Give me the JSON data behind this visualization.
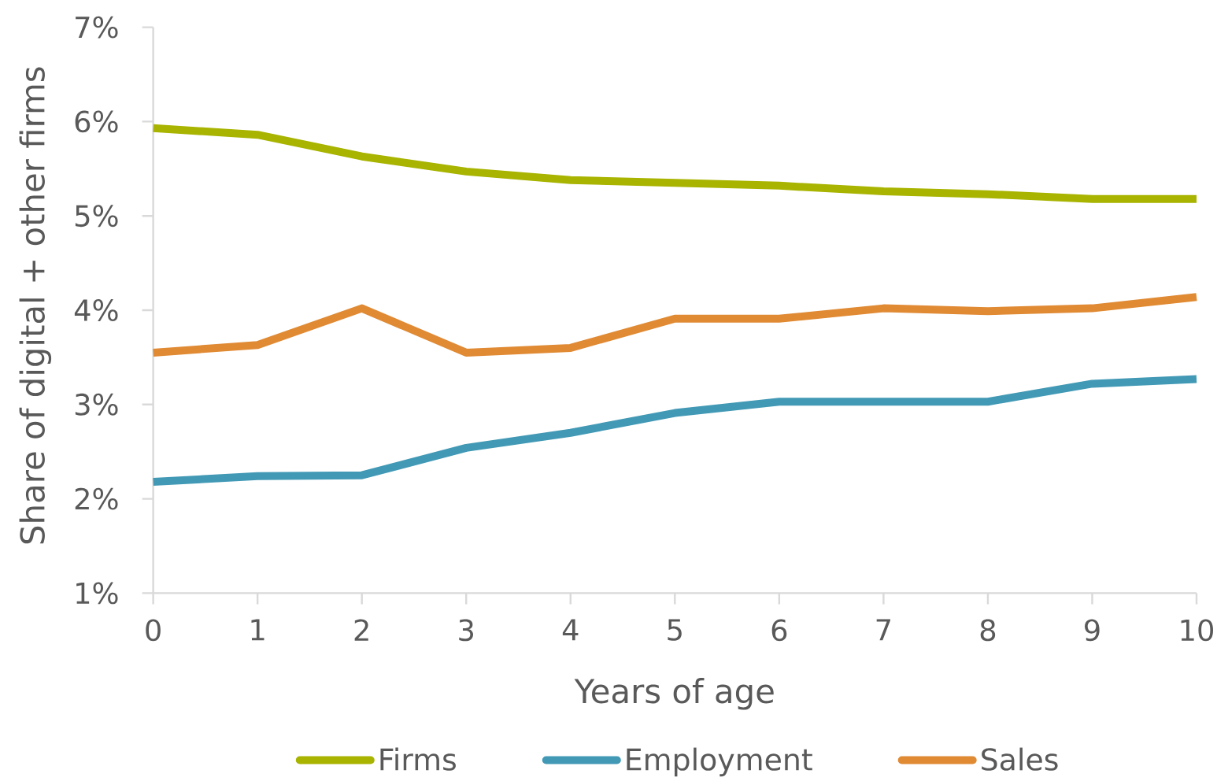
{
  "chart_data": {
    "type": "line",
    "xlabel": "Years of age",
    "ylabel": "Share of digital + other firms",
    "x": [
      0,
      1,
      2,
      3,
      4,
      5,
      6,
      7,
      8,
      9,
      10
    ],
    "xlim": [
      0,
      10
    ],
    "xticks": [
      0,
      1,
      2,
      3,
      4,
      5,
      6,
      7,
      8,
      9,
      10
    ],
    "ylim": [
      1,
      7
    ],
    "yticks": [
      {
        "value": 1,
        "label": "1%"
      },
      {
        "value": 2,
        "label": "2%"
      },
      {
        "value": 3,
        "label": "3%"
      },
      {
        "value": 4,
        "label": "4%"
      },
      {
        "value": 5,
        "label": "5%"
      },
      {
        "value": 6,
        "label": "6%"
      },
      {
        "value": 7,
        "label": "7%"
      }
    ],
    "series": [
      {
        "name": "Firms",
        "color": "#a8b400",
        "values": [
          5.93,
          5.86,
          5.63,
          5.47,
          5.38,
          5.35,
          5.32,
          5.26,
          5.23,
          5.18,
          5.18
        ]
      },
      {
        "name": "Employment",
        "color": "#4299b5",
        "values": [
          2.18,
          2.24,
          2.25,
          2.54,
          2.7,
          2.91,
          3.03,
          3.03,
          3.03,
          3.22,
          3.27
        ]
      },
      {
        "name": "Sales",
        "color": "#e08a34",
        "values": [
          3.55,
          3.63,
          4.02,
          3.55,
          3.6,
          3.91,
          3.91,
          4.02,
          3.99,
          4.02,
          4.14
        ]
      }
    ],
    "legend": "bottom"
  }
}
